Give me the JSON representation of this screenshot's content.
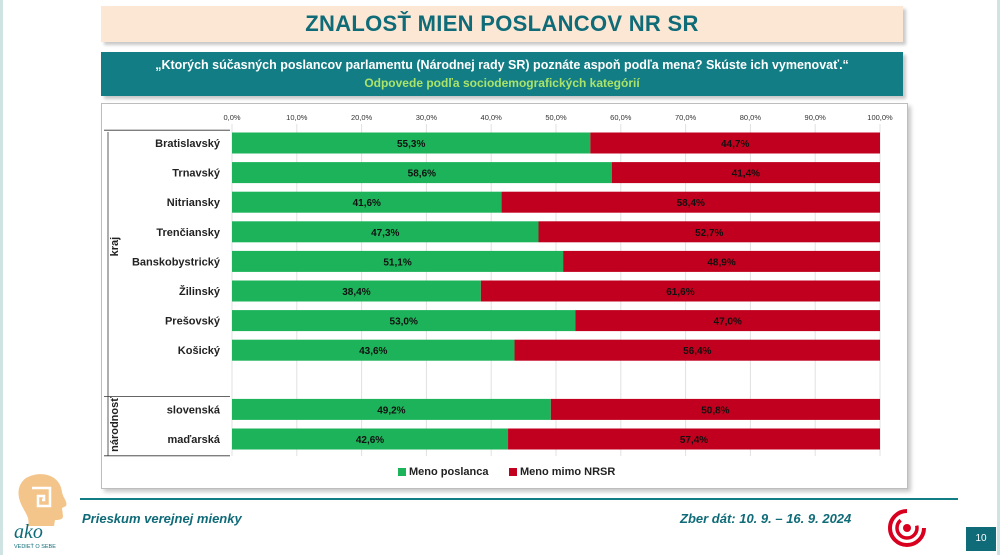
{
  "title": "ZNALOSŤ MIEN POSLANCOV NR SR",
  "question": "„Ktorých súčasných poslancov parlamentu (Národnej rady SR) poznáte aspoň podľa mena? Skúste ich vymenovať.“",
  "subtitle": "Odpovede podľa sociodemografických kategórií",
  "footer": {
    "survey": "Prieskum verejnej mienky",
    "collection": "Zber dát: 10. 9. – 16. 9. 2024",
    "logo_text": "ako",
    "logo_tagline": "VEDIEŤ O SEBE",
    "page_number": "10"
  },
  "colors": {
    "green": "#1db35a",
    "red": "#c0001e",
    "teal": "#137d85"
  },
  "chart_data": {
    "type": "bar",
    "orientation": "horizontal",
    "stacked": true,
    "xlim": [
      0,
      100
    ],
    "x_ticks": [
      "0,0%",
      "10,0%",
      "20,0%",
      "30,0%",
      "40,0%",
      "50,0%",
      "60,0%",
      "70,0%",
      "80,0%",
      "90,0%",
      "100,0%"
    ],
    "grid": true,
    "legend_position": "bottom",
    "groups": [
      {
        "label": "kraj",
        "categories": [
          "Bratislavský",
          "Trnavský",
          "Nitriansky",
          "Trenčiansky",
          "Banskobystrický",
          "Žilinský",
          "Prešovský",
          "Košický"
        ]
      },
      {
        "label": "národnosť",
        "categories": [
          "slovenská",
          "maďarská"
        ]
      }
    ],
    "series": [
      {
        "name": "Meno poslanca",
        "color": "#1db35a",
        "values": [
          55.3,
          58.6,
          41.6,
          47.3,
          51.1,
          38.4,
          53.0,
          43.6,
          49.2,
          42.6
        ],
        "labels": [
          "55,3%",
          "58,6%",
          "41,6%",
          "47,3%",
          "51,1%",
          "38,4%",
          "53,0%",
          "43,6%",
          "49,2%",
          "42,6%"
        ]
      },
      {
        "name": "Meno mimo NRSR",
        "color": "#c0001e",
        "values": [
          44.7,
          41.4,
          58.4,
          52.7,
          48.9,
          61.6,
          47.0,
          56.4,
          50.8,
          57.4
        ],
        "labels": [
          "44,7%",
          "41,4%",
          "58,4%",
          "52,7%",
          "48,9%",
          "61,6%",
          "47,0%",
          "56,4%",
          "50,8%",
          "57,4%"
        ]
      }
    ]
  }
}
